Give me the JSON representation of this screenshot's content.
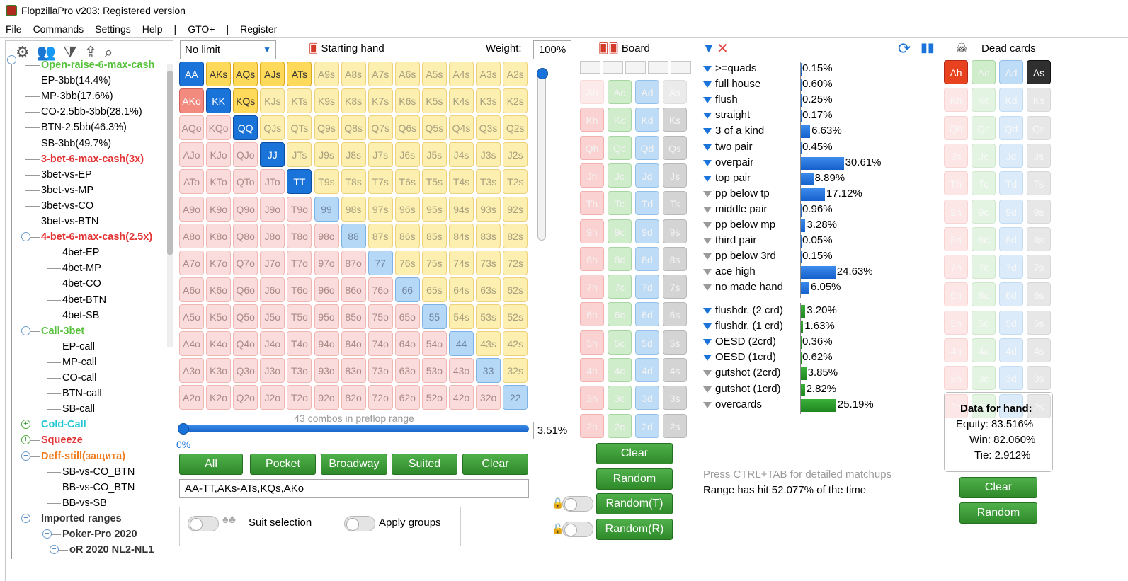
{
  "window": {
    "title": "FlopzillaPro v203: Registered version"
  },
  "menu": [
    "File",
    "Commands",
    "Settings",
    "Help",
    "|",
    "GTO+",
    "|",
    "Register"
  ],
  "tree": [
    {
      "label": "Open-raise-6-max-cash",
      "style": "green"
    },
    {
      "label": "EP-3bb(14.4%)"
    },
    {
      "label": "MP-3bb(17.6%)"
    },
    {
      "label": "CO-2.5bb-3bb(28.1%)"
    },
    {
      "label": "BTN-2.5bb(46.3%)"
    },
    {
      "label": "SB-3bb(49.7%)"
    },
    {
      "label": "3-bet-6-max-cash(3x)",
      "style": "red"
    },
    {
      "label": "3bet-vs-EP"
    },
    {
      "label": "3bet-vs-MP"
    },
    {
      "label": "3bet-vs-CO"
    },
    {
      "label": "3bet-vs-BTN"
    },
    {
      "label": "4-bet-6-max-cash(2.5x)",
      "style": "red"
    },
    {
      "label": "4bet-EP"
    },
    {
      "label": "4bet-MP"
    },
    {
      "label": "4bet-CO"
    },
    {
      "label": "4bet-BTN"
    },
    {
      "label": "4bet-SB"
    },
    {
      "label": "Call-3bet",
      "style": "green"
    },
    {
      "label": "EP-call"
    },
    {
      "label": "MP-call"
    },
    {
      "label": "CO-call"
    },
    {
      "label": "BTN-call"
    },
    {
      "label": "SB-call"
    },
    {
      "label": "Cold-Call",
      "style": "cyan"
    },
    {
      "label": "Squeeze",
      "style": "red"
    },
    {
      "label": "Deff-still(защита)",
      "style": "orange"
    },
    {
      "label": "SB-vs-CO_BTN"
    },
    {
      "label": "BB-vs-CO_BTN"
    },
    {
      "label": "BB-vs-SB"
    },
    {
      "label": "Imported ranges",
      "style": "dark"
    },
    {
      "label": "Poker-Pro 2020",
      "style": "dark"
    },
    {
      "label": "oR 2020 NL2-NL1",
      "style": "dark"
    }
  ],
  "game_type": "No limit",
  "starting_hand_label": "Starting hand",
  "weight_label": "Weight:",
  "weight_value": "100%",
  "matrix_ranks": [
    "A",
    "K",
    "Q",
    "J",
    "T",
    "9",
    "8",
    "7",
    "6",
    "5",
    "4",
    "3",
    "2"
  ],
  "selected_hands": [
    "AA",
    "AKs",
    "AQs",
    "AJs",
    "ATs",
    "AKo",
    "KK",
    "KQs",
    "QQ",
    "JJ",
    "TT"
  ],
  "partial_hands": [
    "99",
    "88",
    "77",
    "66",
    "55",
    "44",
    "33",
    "22"
  ],
  "combos_text": "43 combos in preflop range",
  "range_pct": "3.51%",
  "range_slider_label": "0%",
  "range_slider_level": 0,
  "preset_buttons": [
    "All",
    "Pocket",
    "Broadway",
    "Suited",
    "Clear"
  ],
  "range_text": "AA-TT,AKs-ATs,KQs,AKo",
  "suit_selection_label": "Suit selection",
  "apply_groups_label": "Apply groups",
  "board_title": "Board",
  "board_buttons": [
    "Clear",
    "Random",
    "Random(T)",
    "Random(R)"
  ],
  "card_ranks": [
    "A",
    "K",
    "Q",
    "J",
    "T",
    "9",
    "8",
    "7",
    "6",
    "5",
    "4",
    "3",
    "2"
  ],
  "card_suits": [
    "h",
    "c",
    "d",
    "s"
  ],
  "board_dim_cards": [
    "Ah",
    "As"
  ],
  "stats": [
    {
      "label": ">=quads",
      "pct": "0.15%",
      "value": 0.15,
      "filter": "blue"
    },
    {
      "label": "full house",
      "pct": "0.60%",
      "value": 0.6,
      "filter": "blue"
    },
    {
      "label": "flush",
      "pct": "0.25%",
      "value": 0.25,
      "filter": "blue"
    },
    {
      "label": "straight",
      "pct": "0.17%",
      "value": 0.17,
      "filter": "blue"
    },
    {
      "label": "3 of a kind",
      "pct": "6.63%",
      "value": 6.63,
      "filter": "blue"
    },
    {
      "label": "two pair",
      "pct": "0.45%",
      "value": 0.45,
      "filter": "blue"
    },
    {
      "label": "overpair",
      "pct": "30.61%",
      "value": 30.61,
      "filter": "blue"
    },
    {
      "label": "top pair",
      "pct": "8.89%",
      "value": 8.89,
      "filter": "blue"
    },
    {
      "label": "pp below tp",
      "pct": "17.12%",
      "value": 17.12,
      "filter": "gray"
    },
    {
      "label": "middle pair",
      "pct": "0.96%",
      "value": 0.96,
      "filter": "gray"
    },
    {
      "label": "pp below mp",
      "pct": "3.28%",
      "value": 3.28,
      "filter": "gray"
    },
    {
      "label": "third pair",
      "pct": "0.05%",
      "value": 0.05,
      "filter": "gray"
    },
    {
      "label": "pp below 3rd",
      "pct": "0.15%",
      "value": 0.15,
      "filter": "gray"
    },
    {
      "label": "ace high",
      "pct": "24.63%",
      "value": 24.63,
      "filter": "gray"
    },
    {
      "label": "no made hand",
      "pct": "6.05%",
      "value": 6.05,
      "filter": "gray"
    }
  ],
  "draw_stats": [
    {
      "label": "flushdr. (2 crd)",
      "pct": "3.20%",
      "value": 3.2,
      "filter": "blue"
    },
    {
      "label": "flushdr. (1 crd)",
      "pct": "1.63%",
      "value": 1.63,
      "filter": "blue"
    },
    {
      "label": "OESD (2crd)",
      "pct": "0.36%",
      "value": 0.36,
      "filter": "blue"
    },
    {
      "label": "OESD (1crd)",
      "pct": "0.62%",
      "value": 0.62,
      "filter": "blue"
    },
    {
      "label": "gutshot (2crd)",
      "pct": "3.85%",
      "value": 3.85,
      "filter": "gray"
    },
    {
      "label": "gutshot (1crd)",
      "pct": "2.82%",
      "value": 2.82,
      "filter": "gray"
    },
    {
      "label": "overcards",
      "pct": "25.19%",
      "value": 25.19,
      "filter": "gray"
    }
  ],
  "hint_text": "Press CTRL+TAB for detailed matchups",
  "hit_text": "Range has hit 52.077% of the time",
  "dead_title": "Dead cards",
  "dead_selected": [
    "Ah",
    "As"
  ],
  "dead_bright": [
    "Ac",
    "Ad"
  ],
  "hand_data": {
    "title": "Data for hand:",
    "equity": "Equity: 83.516%",
    "win": "Win: 82.060%",
    "tie": "Tie: 2.912%"
  },
  "dead_buttons": [
    "Clear",
    "Random"
  ],
  "colors": {
    "accent": "#1a73d8",
    "button_green": "#2f8a2a",
    "offsuit": "#fbdcdc",
    "suited": "#fcefb0",
    "pair": "#d8e8f9"
  }
}
